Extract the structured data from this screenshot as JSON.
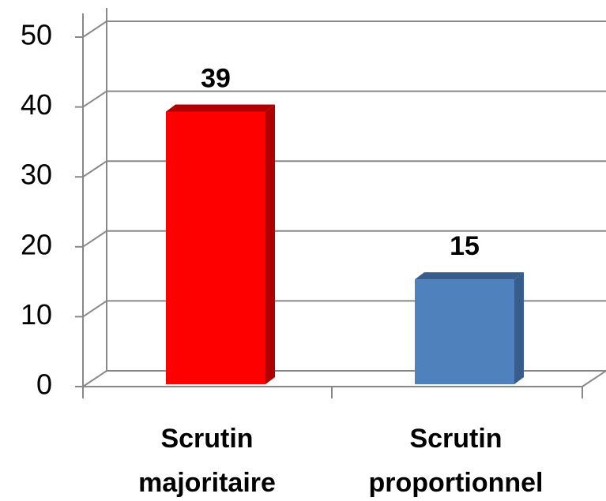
{
  "chart_data": {
    "type": "bar",
    "categories": [
      "Scrutin majoritaire",
      "Scrutin proportionnel"
    ],
    "values": [
      39,
      15
    ],
    "colors": [
      "#ff0000",
      "#4f81bd"
    ],
    "side_colors": [
      "#b00000",
      "#385d8a"
    ],
    "ylim": [
      0,
      50
    ],
    "yticks": [
      0,
      10,
      20,
      30,
      40,
      50
    ],
    "grid": true
  }
}
